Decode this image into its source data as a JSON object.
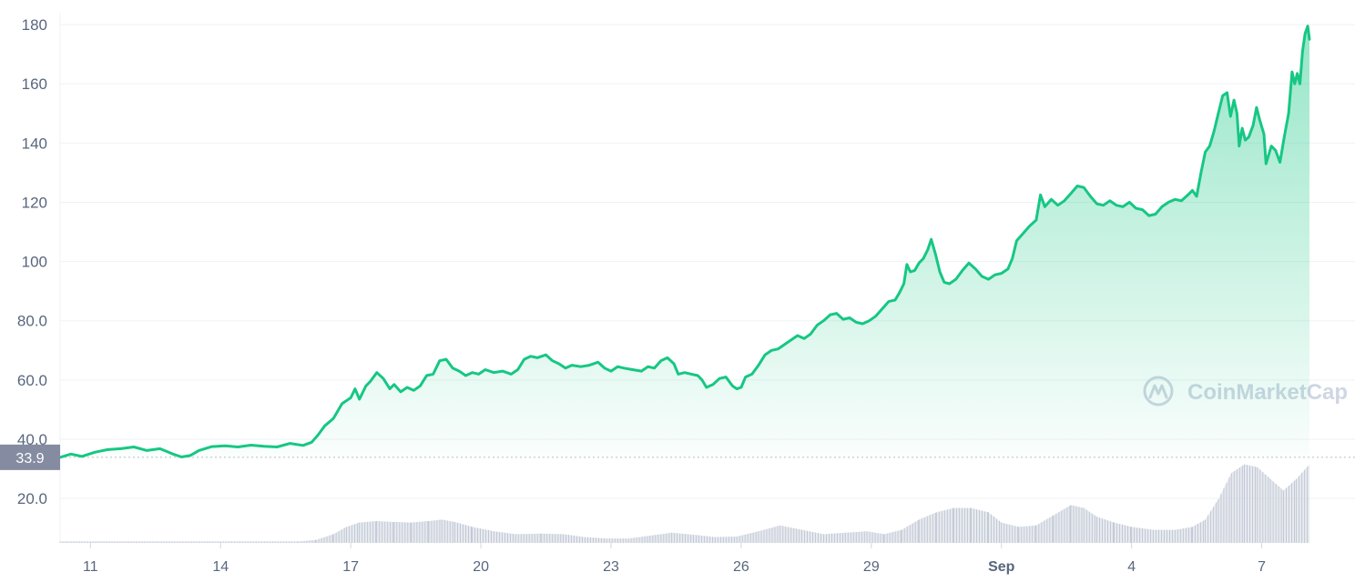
{
  "chart_data": {
    "type": "area",
    "y_ticks": [
      "20.0",
      "40.0",
      "60.0",
      "80.0",
      "100",
      "120",
      "140",
      "160",
      "180"
    ],
    "y_tick_values": [
      20,
      40,
      60,
      80,
      100,
      120,
      140,
      160,
      180
    ],
    "ylim": [
      5,
      184
    ],
    "x_ticks": [
      {
        "label": "11",
        "day": 1,
        "bold": false
      },
      {
        "label": "14",
        "day": 4,
        "bold": false
      },
      {
        "label": "17",
        "day": 7,
        "bold": false
      },
      {
        "label": "20",
        "day": 10,
        "bold": false
      },
      {
        "label": "23",
        "day": 13,
        "bold": false
      },
      {
        "label": "26",
        "day": 16,
        "bold": false
      },
      {
        "label": "29",
        "day": 19,
        "bold": false
      },
      {
        "label": "Sep",
        "day": 22,
        "bold": true
      },
      {
        "label": "4",
        "day": 25,
        "bold": false
      },
      {
        "label": "7",
        "day": 28,
        "bold": false
      }
    ],
    "xlim": [
      0.3,
      30.15
    ],
    "baseline_value": 33.9,
    "baseline_label": "33.9",
    "series": [
      {
        "color": "#16c784",
        "points": [
          [
            0.3,
            33.9
          ],
          [
            0.55,
            35.0
          ],
          [
            0.8,
            34.2
          ],
          [
            1.1,
            35.6
          ],
          [
            1.4,
            36.5
          ],
          [
            1.7,
            36.8
          ],
          [
            2.0,
            37.4
          ],
          [
            2.3,
            36.2
          ],
          [
            2.6,
            36.8
          ],
          [
            2.9,
            35.0
          ],
          [
            3.1,
            34.0
          ],
          [
            3.3,
            34.5
          ],
          [
            3.5,
            36.2
          ],
          [
            3.8,
            37.5
          ],
          [
            4.1,
            37.8
          ],
          [
            4.4,
            37.4
          ],
          [
            4.7,
            38.0
          ],
          [
            5.0,
            37.6
          ],
          [
            5.3,
            37.4
          ],
          [
            5.6,
            38.6
          ],
          [
            5.9,
            37.9
          ],
          [
            6.1,
            39.0
          ],
          [
            6.25,
            41.5
          ],
          [
            6.4,
            44.5
          ],
          [
            6.6,
            47.0
          ],
          [
            6.8,
            52.0
          ],
          [
            7.0,
            54.0
          ],
          [
            7.1,
            57.0
          ],
          [
            7.2,
            53.5
          ],
          [
            7.35,
            58.0
          ],
          [
            7.45,
            59.5
          ],
          [
            7.6,
            62.5
          ],
          [
            7.75,
            60.5
          ],
          [
            7.9,
            57.0
          ],
          [
            8.0,
            58.5
          ],
          [
            8.15,
            56.0
          ],
          [
            8.3,
            57.5
          ],
          [
            8.45,
            56.5
          ],
          [
            8.6,
            58.0
          ],
          [
            8.75,
            61.5
          ],
          [
            8.9,
            62.0
          ],
          [
            9.05,
            66.5
          ],
          [
            9.2,
            67.0
          ],
          [
            9.35,
            64.0
          ],
          [
            9.5,
            63.0
          ],
          [
            9.65,
            61.5
          ],
          [
            9.8,
            62.5
          ],
          [
            9.95,
            62.0
          ],
          [
            10.1,
            63.5
          ],
          [
            10.3,
            62.5
          ],
          [
            10.5,
            63.0
          ],
          [
            10.7,
            62.0
          ],
          [
            10.85,
            63.5
          ],
          [
            11.0,
            67.0
          ],
          [
            11.15,
            68.0
          ],
          [
            11.3,
            67.5
          ],
          [
            11.5,
            68.5
          ],
          [
            11.65,
            66.5
          ],
          [
            11.8,
            65.5
          ],
          [
            11.95,
            64.0
          ],
          [
            12.1,
            65.0
          ],
          [
            12.3,
            64.5
          ],
          [
            12.5,
            65.0
          ],
          [
            12.7,
            66.0
          ],
          [
            12.85,
            64.0
          ],
          [
            13.0,
            63.0
          ],
          [
            13.15,
            64.5
          ],
          [
            13.3,
            64.0
          ],
          [
            13.5,
            63.5
          ],
          [
            13.7,
            63.0
          ],
          [
            13.85,
            64.5
          ],
          [
            14.0,
            64.0
          ],
          [
            14.15,
            66.5
          ],
          [
            14.3,
            67.5
          ],
          [
            14.45,
            65.5
          ],
          [
            14.55,
            62.0
          ],
          [
            14.7,
            62.5
          ],
          [
            14.85,
            62.0
          ],
          [
            15.0,
            61.5
          ],
          [
            15.1,
            60.0
          ],
          [
            15.2,
            57.5
          ],
          [
            15.35,
            58.5
          ],
          [
            15.5,
            60.5
          ],
          [
            15.65,
            61.0
          ],
          [
            15.8,
            58.0
          ],
          [
            15.9,
            57.0
          ],
          [
            16.0,
            57.5
          ],
          [
            16.1,
            61.0
          ],
          [
            16.25,
            62.0
          ],
          [
            16.4,
            65.0
          ],
          [
            16.55,
            68.5
          ],
          [
            16.7,
            70.0
          ],
          [
            16.85,
            70.5
          ],
          [
            17.0,
            72.0
          ],
          [
            17.15,
            73.5
          ],
          [
            17.3,
            75.0
          ],
          [
            17.45,
            74.0
          ],
          [
            17.6,
            75.5
          ],
          [
            17.75,
            78.5
          ],
          [
            17.9,
            80.0
          ],
          [
            18.05,
            82.0
          ],
          [
            18.2,
            82.5
          ],
          [
            18.35,
            80.5
          ],
          [
            18.5,
            81.0
          ],
          [
            18.65,
            79.5
          ],
          [
            18.8,
            79.0
          ],
          [
            18.95,
            80.0
          ],
          [
            19.1,
            81.5
          ],
          [
            19.25,
            84.0
          ],
          [
            19.4,
            86.5
          ],
          [
            19.55,
            87.0
          ],
          [
            19.65,
            89.5
          ],
          [
            19.75,
            92.5
          ],
          [
            19.82,
            99.0
          ],
          [
            19.9,
            96.5
          ],
          [
            20.0,
            97.0
          ],
          [
            20.1,
            99.5
          ],
          [
            20.2,
            101.0
          ],
          [
            20.3,
            104.0
          ],
          [
            20.38,
            107.5
          ],
          [
            20.48,
            102.5
          ],
          [
            20.58,
            96.5
          ],
          [
            20.68,
            93.0
          ],
          [
            20.8,
            92.5
          ],
          [
            20.95,
            94.0
          ],
          [
            21.1,
            97.0
          ],
          [
            21.25,
            99.5
          ],
          [
            21.4,
            97.5
          ],
          [
            21.55,
            95.0
          ],
          [
            21.7,
            94.0
          ],
          [
            21.85,
            95.5
          ],
          [
            22.0,
            96.0
          ],
          [
            22.15,
            97.5
          ],
          [
            22.25,
            101.0
          ],
          [
            22.35,
            107.0
          ],
          [
            22.5,
            109.5
          ],
          [
            22.65,
            112.0
          ],
          [
            22.8,
            114.0
          ],
          [
            22.9,
            122.5
          ],
          [
            23.0,
            118.5
          ],
          [
            23.15,
            121.0
          ],
          [
            23.3,
            119.0
          ],
          [
            23.45,
            120.5
          ],
          [
            23.6,
            123.0
          ],
          [
            23.75,
            125.5
          ],
          [
            23.9,
            125.0
          ],
          [
            24.05,
            122.0
          ],
          [
            24.2,
            119.5
          ],
          [
            24.35,
            119.0
          ],
          [
            24.5,
            120.5
          ],
          [
            24.65,
            119.0
          ],
          [
            24.8,
            118.5
          ],
          [
            24.95,
            120.0
          ],
          [
            25.1,
            118.0
          ],
          [
            25.25,
            117.5
          ],
          [
            25.4,
            115.5
          ],
          [
            25.55,
            116.0
          ],
          [
            25.7,
            118.5
          ],
          [
            25.85,
            120.0
          ],
          [
            26.0,
            121.0
          ],
          [
            26.15,
            120.5
          ],
          [
            26.3,
            122.5
          ],
          [
            26.4,
            124.0
          ],
          [
            26.5,
            122.0
          ],
          [
            26.6,
            130.0
          ],
          [
            26.7,
            137.0
          ],
          [
            26.8,
            139.0
          ],
          [
            26.9,
            144.0
          ],
          [
            27.0,
            150.0
          ],
          [
            27.1,
            156.0
          ],
          [
            27.2,
            157.0
          ],
          [
            27.28,
            149.0
          ],
          [
            27.36,
            154.5
          ],
          [
            27.43,
            150.0
          ],
          [
            27.48,
            139.0
          ],
          [
            27.55,
            145.0
          ],
          [
            27.62,
            141.0
          ],
          [
            27.7,
            142.0
          ],
          [
            27.8,
            146.0
          ],
          [
            27.88,
            152.0
          ],
          [
            27.95,
            148.0
          ],
          [
            28.05,
            143.0
          ],
          [
            28.1,
            133.0
          ],
          [
            28.16,
            136.0
          ],
          [
            28.22,
            139.0
          ],
          [
            28.32,
            137.5
          ],
          [
            28.42,
            133.5
          ],
          [
            28.52,
            142.0
          ],
          [
            28.62,
            150.0
          ],
          [
            28.7,
            164.0
          ],
          [
            28.76,
            160.0
          ],
          [
            28.82,
            163.5
          ],
          [
            28.88,
            160.0
          ],
          [
            28.94,
            171.0
          ],
          [
            29.0,
            177.0
          ],
          [
            29.06,
            179.5
          ],
          [
            29.1,
            175.0
          ]
        ]
      }
    ],
    "volume": {
      "color": "#d3d8e2",
      "points": [
        [
          0.3,
          0.5
        ],
        [
          2.0,
          0.5
        ],
        [
          4.0,
          0.5
        ],
        [
          5.8,
          0.5
        ],
        [
          6.2,
          1.0
        ],
        [
          6.6,
          3.0
        ],
        [
          6.9,
          5.5
        ],
        [
          7.2,
          7.0
        ],
        [
          7.6,
          7.5
        ],
        [
          8.0,
          7.2
        ],
        [
          8.4,
          7.0
        ],
        [
          8.8,
          7.5
        ],
        [
          9.1,
          8.0
        ],
        [
          9.4,
          7.2
        ],
        [
          9.8,
          5.5
        ],
        [
          10.3,
          4.0
        ],
        [
          10.8,
          3.0
        ],
        [
          11.4,
          3.2
        ],
        [
          11.9,
          3.0
        ],
        [
          12.4,
          2.0
        ],
        [
          12.9,
          1.5
        ],
        [
          13.4,
          1.5
        ],
        [
          13.9,
          2.5
        ],
        [
          14.4,
          3.5
        ],
        [
          14.9,
          2.8
        ],
        [
          15.4,
          2.0
        ],
        [
          15.9,
          2.2
        ],
        [
          16.4,
          4.0
        ],
        [
          16.9,
          6.0
        ],
        [
          17.4,
          4.5
        ],
        [
          17.9,
          3.0
        ],
        [
          18.4,
          3.5
        ],
        [
          18.9,
          4.0
        ],
        [
          19.3,
          3.0
        ],
        [
          19.7,
          4.5
        ],
        [
          20.1,
          8.0
        ],
        [
          20.5,
          10.5
        ],
        [
          20.9,
          12.0
        ],
        [
          21.3,
          12.0
        ],
        [
          21.7,
          10.5
        ],
        [
          22.0,
          7.0
        ],
        [
          22.4,
          5.5
        ],
        [
          22.8,
          6.0
        ],
        [
          23.2,
          9.5
        ],
        [
          23.6,
          13.0
        ],
        [
          23.9,
          12.0
        ],
        [
          24.2,
          9.0
        ],
        [
          24.6,
          7.0
        ],
        [
          25.0,
          5.5
        ],
        [
          25.5,
          4.5
        ],
        [
          26.0,
          4.5
        ],
        [
          26.4,
          5.5
        ],
        [
          26.7,
          8.0
        ],
        [
          27.0,
          15.0
        ],
        [
          27.3,
          24.0
        ],
        [
          27.6,
          27.0
        ],
        [
          27.9,
          26.0
        ],
        [
          28.2,
          22.0
        ],
        [
          28.5,
          18.0
        ],
        [
          28.8,
          22.0
        ],
        [
          29.1,
          27.0
        ]
      ]
    },
    "watermark": "CoinMarketCap",
    "grid": true
  }
}
